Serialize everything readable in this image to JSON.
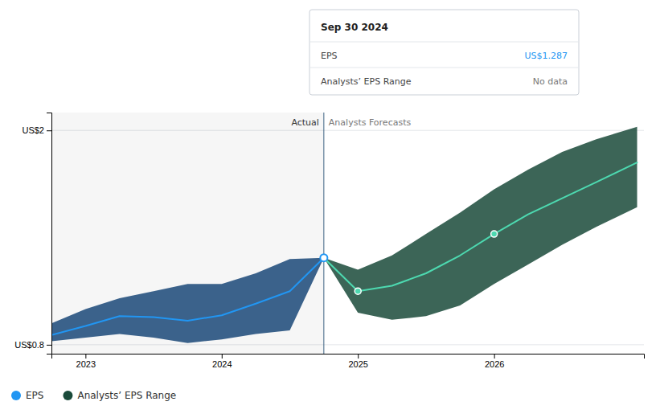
{
  "chart_data": {
    "type": "line",
    "xlim": [
      2022.75,
      2027.1
    ],
    "xticks": [
      2023,
      2024,
      2025,
      2026
    ],
    "ylim": [
      0.75,
      2.1
    ],
    "yticks": [
      {
        "value": 0.8,
        "label": "US$0.8"
      },
      {
        "value": 2.0,
        "label": "US$2"
      }
    ],
    "grid": true,
    "legend": "bottom-left",
    "divider": 2024.75,
    "annotations": [
      {
        "text": "Actual",
        "side": "left"
      },
      {
        "text": "Analysts Forecasts",
        "side": "right"
      }
    ],
    "series": [
      {
        "name": "EPS",
        "type": "line",
        "color": "#2196f3",
        "x": [
          2022.75,
          2023.0,
          2023.25,
          2023.5,
          2023.75,
          2024.0,
          2024.25,
          2024.5,
          2024.75
        ],
        "values": [
          0.855,
          0.905,
          0.96,
          0.955,
          0.935,
          0.965,
          1.03,
          1.1,
          1.287
        ]
      },
      {
        "name": "Analysts’ EPS Range",
        "type": "area",
        "color": "#1a4a3a",
        "x": [
          2024.75,
          2025.0,
          2025.25,
          2025.5,
          2025.75,
          2026.0,
          2026.25,
          2026.5,
          2026.75,
          2027.05
        ],
        "upper": [
          1.287,
          1.22,
          1.3,
          1.42,
          1.54,
          1.67,
          1.78,
          1.88,
          1.95,
          2.02
        ],
        "lower": [
          1.287,
          0.98,
          0.94,
          0.96,
          1.02,
          1.14,
          1.25,
          1.36,
          1.46,
          1.57
        ]
      },
      {
        "type": "area",
        "color": "#1a4878",
        "x": [
          2022.75,
          2023.0,
          2023.25,
          2023.5,
          2023.75,
          2024.0,
          2024.25,
          2024.5,
          2024.75
        ],
        "upper": [
          0.92,
          1.0,
          1.06,
          1.1,
          1.14,
          1.14,
          1.2,
          1.28,
          1.287
        ],
        "lower": [
          0.82,
          0.84,
          0.86,
          0.84,
          0.81,
          0.83,
          0.86,
          0.88,
          1.287
        ]
      },
      {
        "type": "line",
        "color": "#4dd9b0",
        "x": [
          2024.75,
          2025.0,
          2025.25,
          2025.5,
          2025.75,
          2026.0,
          2026.25,
          2026.5,
          2026.75,
          2027.05
        ],
        "values": [
          1.287,
          1.1,
          1.13,
          1.2,
          1.3,
          1.42,
          1.53,
          1.62,
          1.71,
          1.82
        ]
      },
      {
        "type": "scatter",
        "color": "#4dd9b0",
        "marker": "circle",
        "x": [
          2025.0,
          2026.0
        ],
        "values": [
          1.1,
          1.42
        ]
      },
      {
        "type": "scatter",
        "color": "#2196f3",
        "marker": "open-circle",
        "x": [
          2024.75
        ],
        "values": [
          1.287
        ]
      }
    ],
    "tooltip": {
      "title": "Sep 30 2024",
      "rows": [
        {
          "label": "EPS",
          "value": "US$1.287"
        },
        {
          "label": "Analysts’ EPS Range",
          "value": "No data"
        }
      ]
    }
  }
}
